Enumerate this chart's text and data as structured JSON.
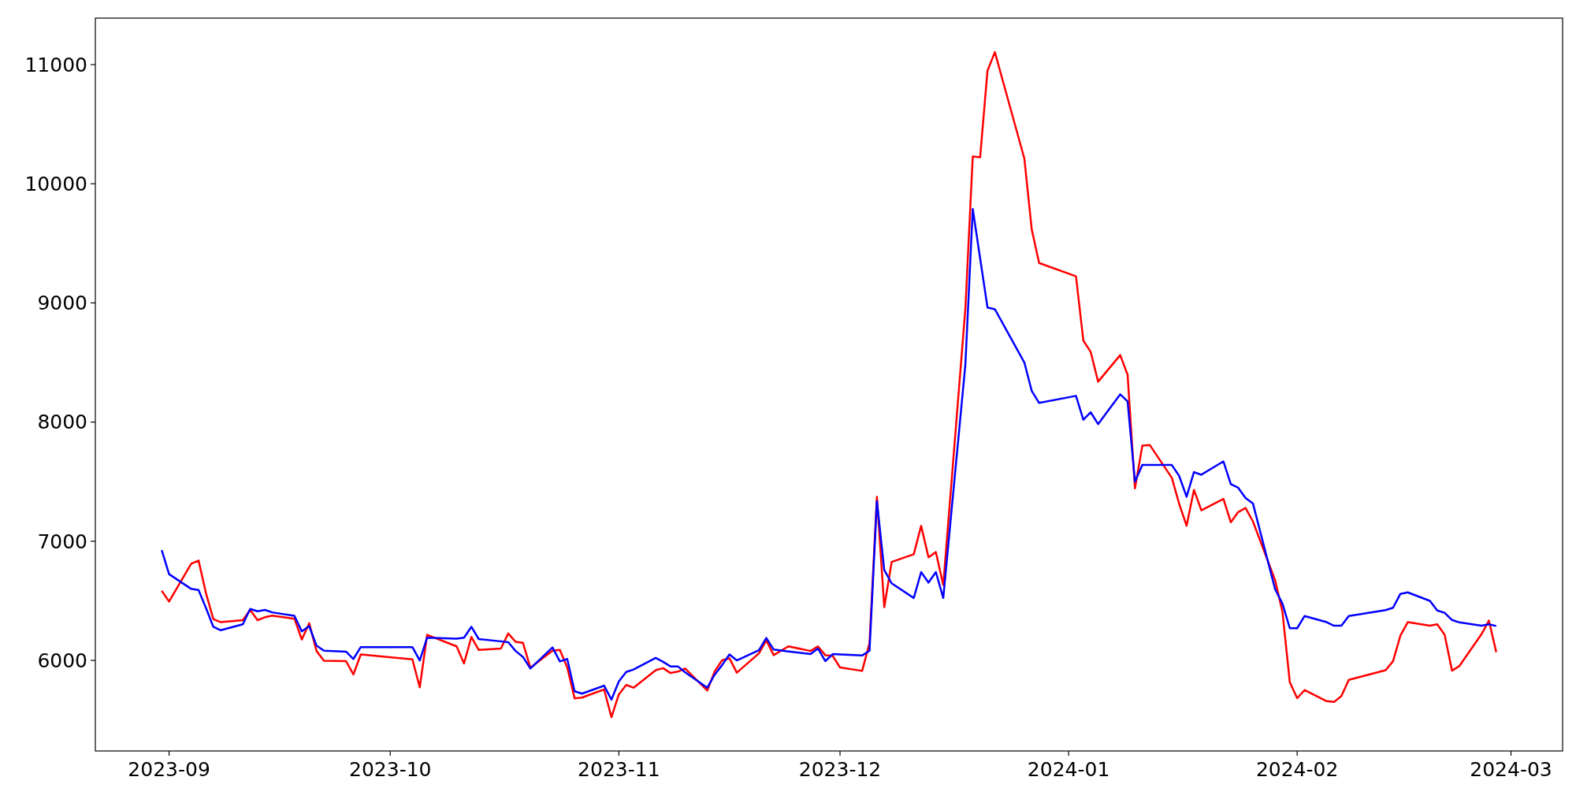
{
  "chart_data": {
    "type": "line",
    "x": [
      "2023-08-31",
      "2023-09-01",
      "2023-09-04",
      "2023-09-05",
      "2023-09-06",
      "2023-09-07",
      "2023-09-08",
      "2023-09-11",
      "2023-09-12",
      "2023-09-13",
      "2023-09-14",
      "2023-09-15",
      "2023-09-18",
      "2023-09-19",
      "2023-09-20",
      "2023-09-21",
      "2023-09-22",
      "2023-09-25",
      "2023-09-26",
      "2023-09-27",
      "2023-10-04",
      "2023-10-05",
      "2023-10-06",
      "2023-10-10",
      "2023-10-11",
      "2023-10-12",
      "2023-10-13",
      "2023-10-16",
      "2023-10-17",
      "2023-10-18",
      "2023-10-19",
      "2023-10-20",
      "2023-10-23",
      "2023-10-24",
      "2023-10-25",
      "2023-10-26",
      "2023-10-27",
      "2023-10-30",
      "2023-10-31",
      "2023-11-01",
      "2023-11-02",
      "2023-11-03",
      "2023-11-06",
      "2023-11-07",
      "2023-11-08",
      "2023-11-09",
      "2023-11-10",
      "2023-11-13",
      "2023-11-14",
      "2023-11-15",
      "2023-11-16",
      "2023-11-17",
      "2023-11-20",
      "2023-11-21",
      "2023-11-22",
      "2023-11-24",
      "2023-11-27",
      "2023-11-28",
      "2023-11-29",
      "2023-11-30",
      "2023-12-01",
      "2023-12-04",
      "2023-12-05",
      "2023-12-06",
      "2023-12-07",
      "2023-12-08",
      "2023-12-11",
      "2023-12-12",
      "2023-12-13",
      "2023-12-14",
      "2023-12-15",
      "2023-12-18",
      "2023-12-19",
      "2023-12-20",
      "2023-12-21",
      "2023-12-22",
      "2023-12-26",
      "2023-12-27",
      "2023-12-28",
      "2024-01-02",
      "2024-01-03",
      "2024-01-04",
      "2024-01-05",
      "2024-01-08",
      "2024-01-09",
      "2024-01-10",
      "2024-01-11",
      "2024-01-12",
      "2024-01-15",
      "2024-01-16",
      "2024-01-17",
      "2024-01-18",
      "2024-01-19",
      "2024-01-22",
      "2024-01-23",
      "2024-01-24",
      "2024-01-25",
      "2024-01-26",
      "2024-01-29",
      "2024-01-30",
      "2024-01-31",
      "2024-02-01",
      "2024-02-02",
      "2024-02-05",
      "2024-02-06",
      "2024-02-07",
      "2024-02-08",
      "2024-02-13",
      "2024-02-14",
      "2024-02-15",
      "2024-02-16",
      "2024-02-19",
      "2024-02-20",
      "2024-02-21",
      "2024-02-22",
      "2024-02-23",
      "2024-02-26",
      "2024-02-27",
      "2024-02-28"
    ],
    "series": [
      {
        "color": "#ff0000",
        "values": [
          6585,
          6494,
          6812,
          6838,
          6565,
          6347,
          6321,
          6338,
          6424,
          6338,
          6362,
          6376,
          6350,
          6176,
          6312,
          6079,
          5997,
          5994,
          5882,
          6050,
          6009,
          5774,
          6215,
          6118,
          5974,
          6197,
          6088,
          6100,
          6226,
          6156,
          6147,
          5938,
          6082,
          6088,
          5941,
          5682,
          5688,
          5756,
          5524,
          5715,
          5794,
          5771,
          5918,
          5935,
          5894,
          5906,
          5932,
          5747,
          5909,
          6000,
          6018,
          5897,
          6059,
          6168,
          6044,
          6118,
          6079,
          6118,
          6044,
          6038,
          5941,
          5912,
          6147,
          7373,
          6447,
          6826,
          6891,
          7129,
          6865,
          6909,
          6632,
          8952,
          10229,
          10222,
          10949,
          11105,
          10211,
          9617,
          9335,
          9223,
          8684,
          8589,
          8339,
          8562,
          8398,
          7443,
          7803,
          7808,
          7532,
          7313,
          7130,
          7431,
          7260,
          7356,
          7159,
          7245,
          7279,
          7166,
          6674,
          6409,
          5817,
          5683,
          5751,
          5658,
          5651,
          5701,
          5837,
          5918,
          5993,
          6208,
          6321,
          6291,
          6303,
          6215,
          5914,
          5953,
          6220,
          6334,
          6069
        ]
      },
      {
        "color": "#0000ff",
        "values": [
          6926,
          6724,
          6600,
          6591,
          6440,
          6282,
          6253,
          6303,
          6432,
          6412,
          6424,
          6403,
          6374,
          6244,
          6288,
          6124,
          6082,
          6074,
          6012,
          6112,
          6112,
          6000,
          6191,
          6182,
          6191,
          6282,
          6179,
          6160,
          6153,
          6079,
          6029,
          5932,
          6109,
          5991,
          6012,
          5741,
          5721,
          5788,
          5671,
          5824,
          5903,
          5924,
          6021,
          5988,
          5950,
          5950,
          5900,
          5771,
          5880,
          5960,
          6050,
          6000,
          6085,
          6188,
          6091,
          6075,
          6053,
          6100,
          5994,
          6053,
          6050,
          6041,
          6082,
          7337,
          6759,
          6647,
          6524,
          6741,
          6653,
          6741,
          6524,
          8483,
          9788,
          9375,
          8961,
          8947,
          8500,
          8261,
          8161,
          8220,
          8020,
          8082,
          7983,
          8233,
          8174,
          7500,
          7640,
          7640,
          7640,
          7548,
          7373,
          7580,
          7558,
          7670,
          7479,
          7449,
          7363,
          7317,
          6599,
          6477,
          6270,
          6270,
          6372,
          6321,
          6291,
          6291,
          6372,
          6422,
          6442,
          6558,
          6571,
          6500,
          6419,
          6400,
          6339,
          6319,
          6291,
          6303,
          6289
        ]
      }
    ],
    "xlim": [
      "2023-08-22",
      "2024-03-08"
    ],
    "xticks": [
      "2023-09",
      "2023-10",
      "2023-11",
      "2023-12",
      "2024-01",
      "2024-02",
      "2024-03"
    ],
    "ylim": [
      5240,
      11390
    ],
    "yticks": [
      6000,
      7000,
      8000,
      9000,
      10000,
      11000
    ],
    "grid": false,
    "marker": "none",
    "line_style": "solid"
  }
}
